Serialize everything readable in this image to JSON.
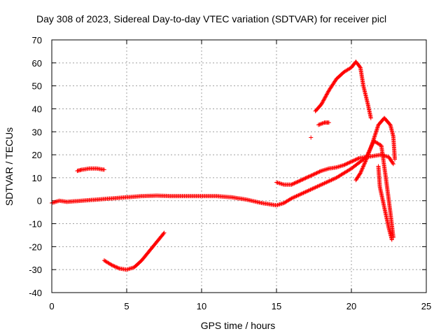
{
  "chart_data": {
    "type": "scatter",
    "title": "Day 308 of 2023, Sidereal Day-to-day VTEC variation (SDTVAR) for receiver picl",
    "xlabel": "GPS time / hours",
    "ylabel": "SDTVAR / TECUs",
    "xlim": [
      0,
      25
    ],
    "ylim": [
      -40,
      70
    ],
    "xticks": [
      0,
      5,
      10,
      15,
      20,
      25
    ],
    "yticks": [
      -40,
      -30,
      -20,
      -10,
      0,
      10,
      20,
      30,
      40,
      50,
      60,
      70
    ],
    "grid": true,
    "marker": "+",
    "color": "#ff0000",
    "series": [
      {
        "points": [
          [
            0,
            -1
          ],
          [
            0.5,
            0
          ],
          [
            1,
            -0.5
          ],
          [
            2,
            0
          ],
          [
            3,
            0.5
          ],
          [
            4,
            1
          ],
          [
            5,
            1.5
          ],
          [
            6,
            2
          ],
          [
            7,
            2.2
          ],
          [
            8,
            2
          ],
          [
            9,
            2
          ],
          [
            10,
            2
          ],
          [
            11,
            2
          ],
          [
            12,
            1.5
          ],
          [
            13,
            0.5
          ],
          [
            14,
            -1
          ],
          [
            14.5,
            -1.5
          ],
          [
            15,
            -2
          ],
          [
            15.5,
            -1
          ],
          [
            16,
            1
          ],
          [
            17,
            4
          ],
          [
            18,
            7
          ],
          [
            19,
            10
          ],
          [
            20,
            14
          ],
          [
            21,
            19
          ],
          [
            21.5,
            26
          ],
          [
            22,
            24
          ],
          [
            22.3,
            10
          ],
          [
            22.6,
            -5
          ],
          [
            22.8,
            -16
          ]
        ]
      },
      {
        "points": [
          [
            1.7,
            13
          ],
          [
            2,
            13.5
          ],
          [
            2.5,
            14
          ],
          [
            3,
            14
          ],
          [
            3.5,
            13.5
          ]
        ]
      },
      {
        "points": [
          [
            3.5,
            -26
          ],
          [
            4,
            -28
          ],
          [
            4.5,
            -29.5
          ],
          [
            5,
            -30
          ],
          [
            5.5,
            -29
          ],
          [
            6,
            -26
          ],
          [
            6.5,
            -22
          ],
          [
            7,
            -18
          ],
          [
            7.5,
            -14
          ]
        ]
      },
      {
        "points": [
          [
            15,
            8
          ],
          [
            15.5,
            7
          ],
          [
            16,
            7
          ],
          [
            16.5,
            8.5
          ],
          [
            17,
            10
          ],
          [
            17.5,
            11.5
          ],
          [
            18,
            13
          ],
          [
            18.5,
            14
          ],
          [
            19,
            14.5
          ],
          [
            19.5,
            15.5
          ],
          [
            20,
            17
          ],
          [
            20.5,
            18.5
          ],
          [
            21,
            19
          ],
          [
            21.5,
            19.5
          ],
          [
            22,
            20
          ],
          [
            22.5,
            19
          ],
          [
            22.8,
            16
          ]
        ]
      },
      {
        "points": [
          [
            17.3,
            27.5
          ]
        ]
      },
      {
        "points": [
          [
            17.8,
            33
          ],
          [
            18.2,
            34
          ],
          [
            18.5,
            34
          ]
        ]
      },
      {
        "points": [
          [
            17.6,
            39
          ],
          [
            18,
            42
          ],
          [
            18.5,
            48
          ],
          [
            19,
            53
          ],
          [
            19.5,
            56
          ],
          [
            20,
            58
          ],
          [
            20.3,
            60.5
          ],
          [
            20.6,
            58
          ],
          [
            20.8,
            50
          ],
          [
            21.1,
            42
          ],
          [
            21.3,
            36
          ]
        ]
      },
      {
        "points": [
          [
            20.3,
            9
          ],
          [
            20.6,
            12
          ],
          [
            21,
            18
          ],
          [
            21.4,
            25
          ],
          [
            21.8,
            33
          ],
          [
            22.2,
            36
          ],
          [
            22.6,
            33
          ],
          [
            22.8,
            28
          ],
          [
            22.9,
            18
          ]
        ]
      },
      {
        "points": [
          [
            21.8,
            15
          ],
          [
            21.9,
            6
          ],
          [
            22.1,
            0
          ],
          [
            22.3,
            -6
          ],
          [
            22.5,
            -12
          ],
          [
            22.7,
            -17
          ]
        ]
      }
    ]
  }
}
